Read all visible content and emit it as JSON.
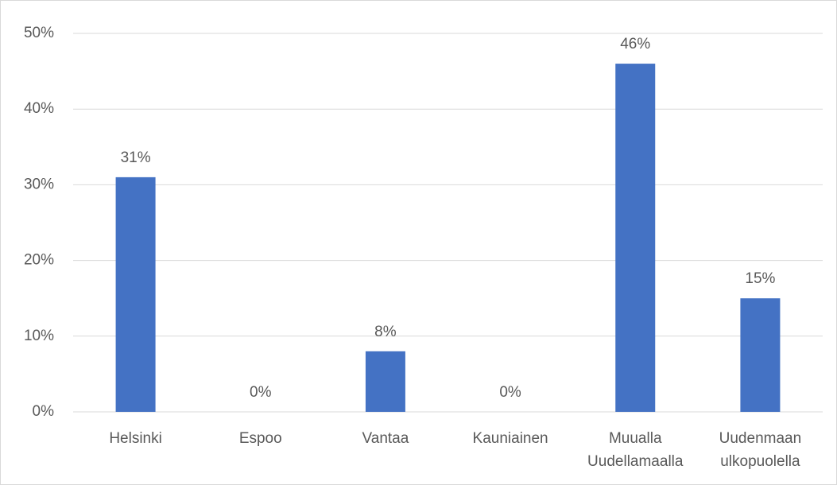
{
  "chart_data": {
    "type": "bar",
    "categories": [
      "Helsinki",
      "Espoo",
      "Vantaa",
      "Kauniainen",
      "Muualla\nUudellamaalla",
      "Uudenmaan\nulkopuolella"
    ],
    "values": [
      31,
      0,
      8,
      0,
      46,
      15
    ],
    "value_labels": [
      "31%",
      "0%",
      "8%",
      "0%",
      "46%",
      "15%"
    ],
    "color": "#4472c4",
    "ylim": [
      0,
      50
    ],
    "yticks": [
      {
        "value": 0,
        "label": "0%"
      },
      {
        "value": 10,
        "label": "10%"
      },
      {
        "value": 20,
        "label": "20%"
      },
      {
        "value": 30,
        "label": "30%"
      },
      {
        "value": 40,
        "label": "40%"
      },
      {
        "value": 50,
        "label": "50%"
      }
    ],
    "grid": true
  }
}
